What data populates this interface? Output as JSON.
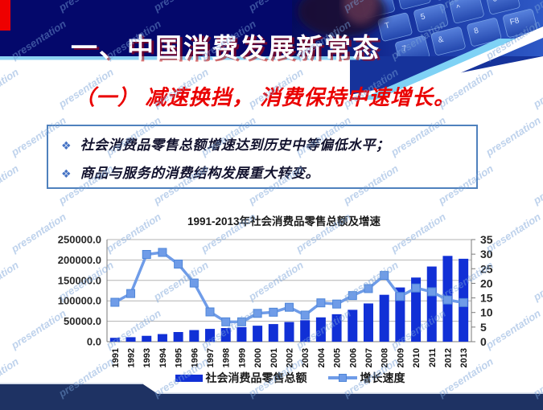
{
  "slide_title": {
    "text": "一、中国消费发展新常态"
  },
  "subtitle": {
    "text": "（一） 减速换挡， 消费保持中速增长。",
    "color": "#ea0000"
  },
  "bullets": {
    "icon": "❖",
    "icon_color": "#4472c4",
    "items": [
      {
        "text": "社会消费品零售总额增速达到历史中等偏低水平；"
      },
      {
        "text": "商品与服务的消费结构发展重大转变。"
      }
    ]
  },
  "watermark": {
    "text": "presentation",
    "color": "rgba(120,160,215,0.48)"
  },
  "decor": {
    "red_accent": "#ee0000",
    "header_navy": "#04086b",
    "wedge_blue": "#16339b",
    "stripe_blue": "#7fd2f5",
    "underline_blue": "#8cd2f2",
    "footer_navy": "#1e3263",
    "keyboard_keys": [
      "S",
      "D",
      "F",
      "R",
      "T",
      "5",
      "^",
      "6",
      "7",
      "&",
      "8",
      "F8"
    ]
  },
  "chart_data": {
    "type": "bar+line",
    "title": "1991-2013年社会消费品零售总额及增速",
    "categories": [
      "1991",
      "1992",
      "1993",
      "1994",
      "1995",
      "1996",
      "1997",
      "1998",
      "1999",
      "2000",
      "2001",
      "2002",
      "2003",
      "2004",
      "2005",
      "2006",
      "2007",
      "2008",
      "2009",
      "2010",
      "2011",
      "2012",
      "2013"
    ],
    "series": [
      {
        "name": "社会消费品零售总额",
        "type": "bar",
        "axis": "left",
        "color": "#1130d6",
        "values": [
          9400,
          11000,
          14300,
          18600,
          23600,
          28400,
          31300,
          33400,
          35600,
          39100,
          43100,
          48100,
          52500,
          59500,
          67200,
          78000,
          93600,
          114800,
          132700,
          157000,
          184000,
          210000,
          203000
        ]
      },
      {
        "name": "增长速度",
        "type": "line",
        "axis": "right",
        "color": "#6f9ce8",
        "values": [
          13.5,
          16.5,
          29.9,
          30.6,
          26.6,
          20.1,
          10.2,
          6.8,
          6.8,
          9.7,
          10.1,
          11.8,
          9.1,
          13.3,
          12.9,
          15.8,
          18.2,
          22.7,
          15.5,
          18.4,
          17.1,
          14.3,
          13.4
        ]
      }
    ],
    "left_axis": {
      "min": 0,
      "max": 250000,
      "step": 50000,
      "decimals": 1
    },
    "right_axis": {
      "min": 0,
      "max": 35,
      "step": 5
    },
    "grid": true,
    "legend_position": "bottom"
  }
}
